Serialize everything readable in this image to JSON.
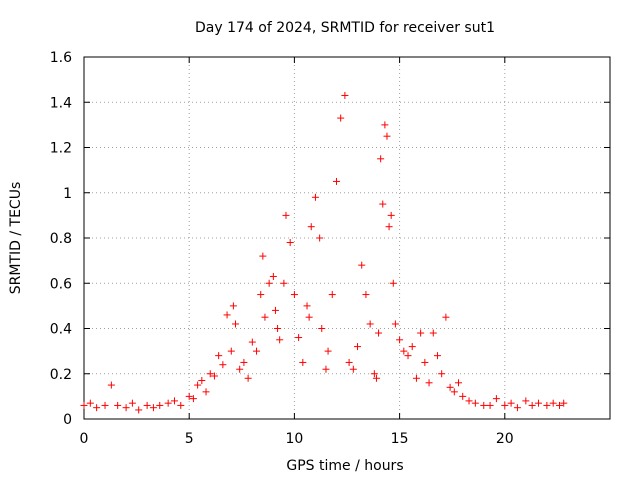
{
  "chart_data": {
    "type": "scatter",
    "title": "Day 174 of 2024, SRMTID for receiver sut1",
    "xlabel": "GPS time / hours",
    "ylabel": "SRMTID / TECUs",
    "xlim": [
      0,
      25
    ],
    "ylim": [
      0,
      1.6
    ],
    "x_ticks": [
      0,
      5,
      10,
      15,
      20
    ],
    "x_tick_labels": [
      "0",
      "5",
      "10",
      "15",
      "20"
    ],
    "y_ticks": [
      0,
      0.2,
      0.4,
      0.6,
      0.8,
      1.0,
      1.2,
      1.4,
      1.6
    ],
    "y_tick_labels": [
      "0",
      "0.2",
      "0.4",
      "0.6",
      "0.8",
      "1",
      "1.2",
      "1.4",
      "1.6"
    ],
    "grid": true,
    "marker": "+",
    "color": "#ff0000",
    "series": [
      {
        "name": "SRMTID",
        "x": [
          0.0,
          0.3,
          0.6,
          1.0,
          1.3,
          1.6,
          2.0,
          2.3,
          2.6,
          3.0,
          3.3,
          3.6,
          4.0,
          4.3,
          4.6,
          5.0,
          5.2,
          5.4,
          5.6,
          5.8,
          6.0,
          6.2,
          6.4,
          6.6,
          6.8,
          7.0,
          7.1,
          7.2,
          7.4,
          7.6,
          7.8,
          8.0,
          8.2,
          8.4,
          8.5,
          8.6,
          8.8,
          9.0,
          9.1,
          9.2,
          9.3,
          9.5,
          9.6,
          9.8,
          10.0,
          10.2,
          10.4,
          10.6,
          10.7,
          10.8,
          11.0,
          11.2,
          11.3,
          11.5,
          11.6,
          11.8,
          12.0,
          12.2,
          12.4,
          12.6,
          12.8,
          13.0,
          13.2,
          13.4,
          13.6,
          13.8,
          13.9,
          14.0,
          14.1,
          14.2,
          14.3,
          14.4,
          14.5,
          14.6,
          14.7,
          14.8,
          15.0,
          15.2,
          15.4,
          15.6,
          15.8,
          16.0,
          16.2,
          16.4,
          16.6,
          16.8,
          17.0,
          17.2,
          17.4,
          17.6,
          17.8,
          18.0,
          18.3,
          18.6,
          19.0,
          19.3,
          19.6,
          20.0,
          20.3,
          20.6,
          21.0,
          21.3,
          21.6,
          22.0,
          22.3,
          22.6,
          22.8
        ],
        "y": [
          0.06,
          0.07,
          0.05,
          0.06,
          0.15,
          0.06,
          0.05,
          0.07,
          0.04,
          0.06,
          0.05,
          0.06,
          0.07,
          0.08,
          0.06,
          0.1,
          0.09,
          0.15,
          0.17,
          0.12,
          0.2,
          0.19,
          0.28,
          0.24,
          0.46,
          0.3,
          0.5,
          0.42,
          0.22,
          0.25,
          0.18,
          0.34,
          0.3,
          0.55,
          0.72,
          0.45,
          0.6,
          0.63,
          0.48,
          0.4,
          0.35,
          0.6,
          0.9,
          0.78,
          0.55,
          0.36,
          0.25,
          0.5,
          0.45,
          0.85,
          0.98,
          0.8,
          0.4,
          0.22,
          0.3,
          0.55,
          1.05,
          1.33,
          1.43,
          0.25,
          0.22,
          0.32,
          0.68,
          0.55,
          0.42,
          0.2,
          0.18,
          0.38,
          1.15,
          0.95,
          1.3,
          1.25,
          0.85,
          0.9,
          0.6,
          0.42,
          0.35,
          0.3,
          0.28,
          0.32,
          0.18,
          0.38,
          0.25,
          0.16,
          0.38,
          0.28,
          0.2,
          0.45,
          0.14,
          0.12,
          0.16,
          0.1,
          0.08,
          0.07,
          0.06,
          0.06,
          0.09,
          0.06,
          0.07,
          0.05,
          0.08,
          0.06,
          0.07,
          0.06,
          0.07,
          0.06,
          0.07
        ]
      }
    ]
  }
}
